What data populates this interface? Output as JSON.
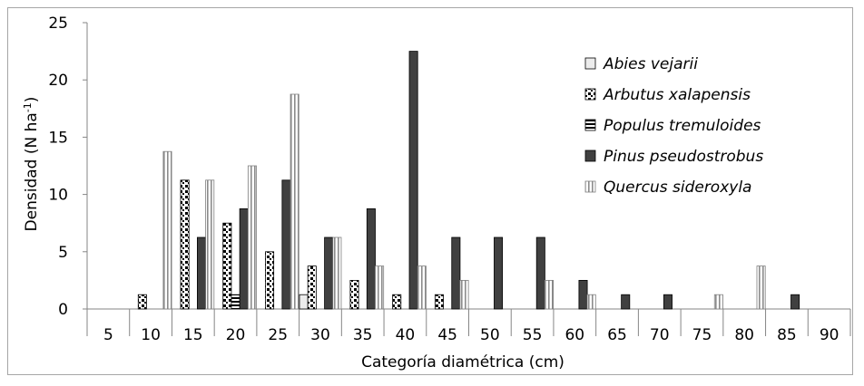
{
  "chart_data": {
    "type": "bar",
    "xlabel": "Categoría diamétrica (cm)",
    "ylabel": "Densidad (N ha",
    "ylabel_sup": "-1",
    "ylabel_close": ")",
    "ylim": [
      0,
      25
    ],
    "yticks": [
      0,
      5,
      10,
      15,
      20,
      25
    ],
    "grid": false,
    "legend_position": "top-right",
    "categories": [
      "5",
      "10",
      "15",
      "20",
      "25",
      "30",
      "35",
      "40",
      "45",
      "50",
      "55",
      "60",
      "65",
      "70",
      "75",
      "80",
      "85",
      "90"
    ],
    "series": [
      {
        "name": "Abies vejarii",
        "pattern": "light",
        "values": [
          0,
          0,
          0,
          0,
          0,
          1.25,
          0,
          0,
          0,
          0,
          0,
          0,
          0,
          0,
          0,
          0,
          0,
          0
        ]
      },
      {
        "name": "Arbutus xalapensis",
        "pattern": "dots",
        "values": [
          0,
          1.25,
          11.25,
          7.5,
          5,
          3.75,
          2.5,
          1.25,
          1.25,
          0,
          0,
          0,
          0,
          0,
          0,
          0,
          0,
          0
        ]
      },
      {
        "name": "Populus tremuloides",
        "pattern": "hstripes",
        "values": [
          0,
          0,
          0,
          1.25,
          0,
          0,
          0,
          0,
          0,
          0,
          0,
          0,
          0,
          0,
          0,
          0,
          0,
          0
        ]
      },
      {
        "name": "Pinus pseudostrobus",
        "pattern": "dark",
        "values": [
          0,
          0,
          6.25,
          8.75,
          11.25,
          6.25,
          8.75,
          22.5,
          6.25,
          6.25,
          6.25,
          2.5,
          1.25,
          1.25,
          0,
          0,
          1.25,
          0
        ]
      },
      {
        "name": "Quercus sideroxyla",
        "pattern": "vstripes",
        "values": [
          0,
          13.75,
          11.25,
          12.5,
          18.75,
          6.25,
          3.75,
          3.75,
          2.5,
          0,
          2.5,
          1.25,
          0,
          0,
          1.25,
          3.75,
          0,
          0
        ]
      }
    ]
  }
}
